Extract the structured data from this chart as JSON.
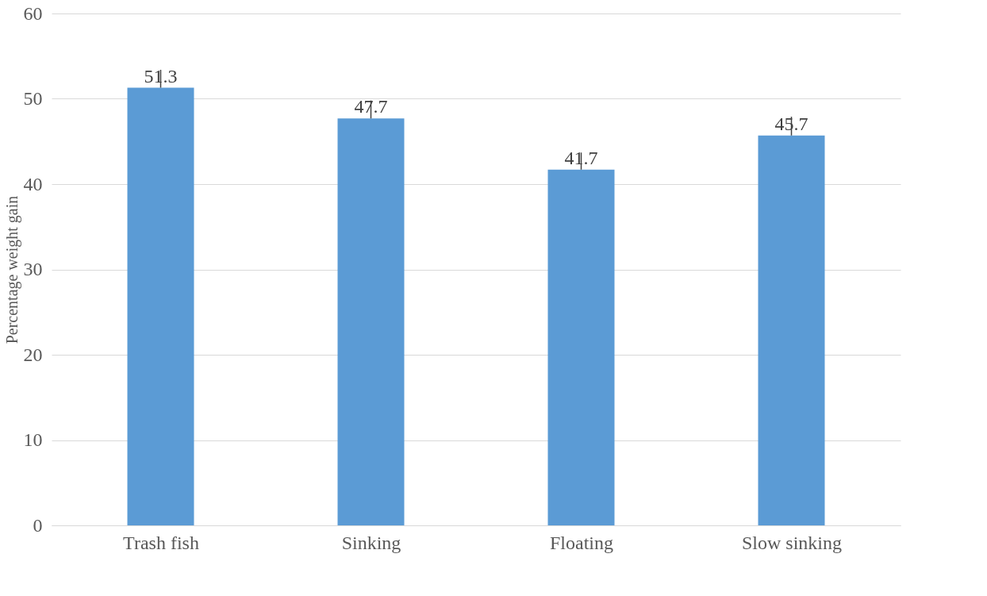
{
  "chart_data": {
    "type": "bar",
    "ylabel": "Percentage weight gain",
    "categories": [
      "Trash fish",
      "Sinking",
      "Floating",
      "Slow sinking"
    ],
    "values": [
      51.3,
      47.7,
      41.7,
      45.7
    ],
    "errors": [
      [
        51.3,
        53.4
      ],
      [
        47.7,
        49.8
      ],
      [
        41.7,
        43.7
      ],
      [
        45.7,
        47.9
      ]
    ],
    "color": "#5b9bd5",
    "ylim": [
      0,
      60
    ],
    "yticks": [
      0,
      10,
      20,
      30,
      40,
      50,
      60
    ],
    "grid": "y",
    "data_labels": true
  }
}
